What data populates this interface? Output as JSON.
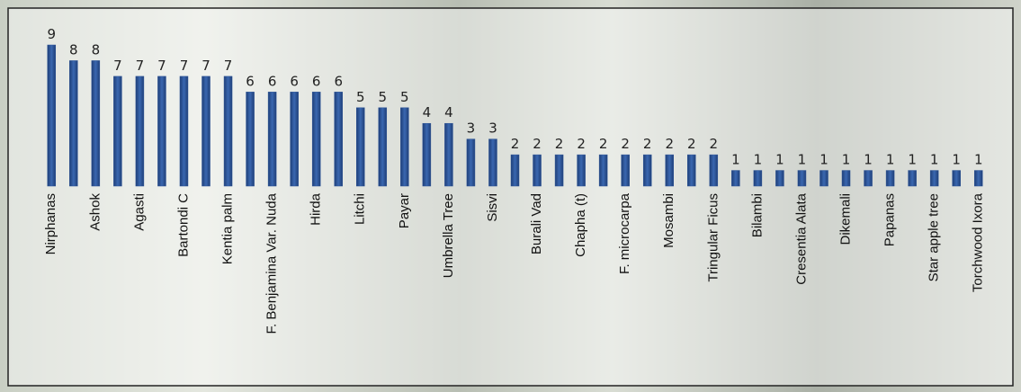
{
  "chart_data": {
    "type": "bar",
    "color": "#2e5597",
    "categories": [
      "Nirphanas",
      null,
      "Ashok",
      null,
      "Agasti",
      null,
      "Bartondi C",
      null,
      "Kentia palm",
      null,
      "F. Benjamina Var. Nuda",
      null,
      "Hirda",
      null,
      "Litchi",
      null,
      "Payar",
      null,
      "Umbrella Tree",
      null,
      "Sisvi",
      null,
      "Burali Vad",
      null,
      "Chapha (t)",
      null,
      "F. microcarpa",
      null,
      "Mosambi",
      null,
      "Tringular Ficus",
      null,
      "Bilambi",
      null,
      "Cresentia Alata",
      null,
      "Dikemali",
      null,
      "Papanas",
      null,
      "Star apple tree",
      null,
      "Torchwood Ixora"
    ],
    "values": [
      9,
      8,
      8,
      7,
      7,
      7,
      7,
      7,
      7,
      6,
      6,
      6,
      6,
      6,
      5,
      5,
      5,
      4,
      4,
      3,
      3,
      2,
      2,
      2,
      2,
      2,
      2,
      2,
      2,
      2,
      2,
      1,
      1,
      1,
      1,
      1,
      1,
      1,
      1,
      1,
      1,
      1,
      1
    ]
  }
}
